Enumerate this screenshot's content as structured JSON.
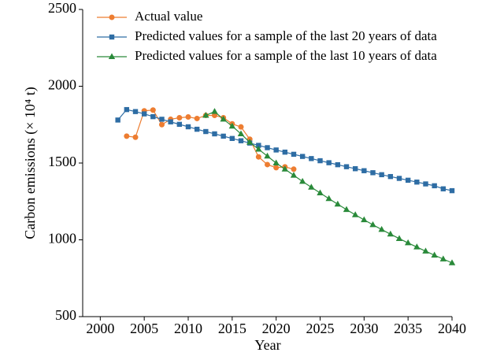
{
  "chart_data": {
    "type": "line",
    "x_label": "Year",
    "y_label": "Carbon emissions (× 10⁴ t)",
    "x": [
      2002,
      2003,
      2004,
      2005,
      2006,
      2007,
      2008,
      2009,
      2010,
      2011,
      2012,
      2013,
      2014,
      2015,
      2016,
      2017,
      2018,
      2019,
      2020,
      2021,
      2022,
      2023,
      2024,
      2025,
      2026,
      2027,
      2028,
      2029,
      2030,
      2031,
      2032,
      2033,
      2034,
      2035,
      2036,
      2037,
      2038,
      2039,
      2040
    ],
    "series": [
      {
        "name": "Actual value",
        "color": "#ed7d31",
        "marker": "circle",
        "values": [
          null,
          1675,
          1668,
          1840,
          1845,
          1750,
          1785,
          1795,
          1800,
          1790,
          1810,
          1810,
          1795,
          1755,
          1735,
          1655,
          1540,
          1490,
          1470,
          1475,
          1460,
          null,
          null,
          null,
          null,
          null,
          null,
          null,
          null,
          null,
          null,
          null,
          null,
          null,
          null,
          null,
          null,
          null,
          null
        ]
      },
      {
        "name": "Predicted values for a sample of the last 20 years of data",
        "color": "#2e6da4",
        "marker": "square",
        "values": [
          1780,
          1848,
          1835,
          1820,
          1802,
          1785,
          1768,
          1752,
          1736,
          1720,
          1705,
          1690,
          1675,
          1660,
          1645,
          1630,
          1615,
          1600,
          1585,
          1571,
          1557,
          1543,
          1529,
          1515,
          1502,
          1489,
          1476,
          1463,
          1450,
          1437,
          1424,
          1412,
          1400,
          1388,
          1376,
          1364,
          1352,
          1332,
          1320
        ]
      },
      {
        "name": "Predicted values for a sample of the last 10 years of data",
        "color": "#2a8a3a",
        "marker": "triangle",
        "values": [
          null,
          null,
          null,
          null,
          null,
          null,
          null,
          null,
          null,
          null,
          1810,
          1835,
          1785,
          1740,
          1690,
          1635,
          1590,
          1545,
          1500,
          1460,
          1420,
          1380,
          1342,
          1305,
          1268,
          1232,
          1197,
          1163,
          1130,
          1098,
          1067,
          1037,
          1008,
          980,
          953,
          926,
          900,
          875,
          850
        ]
      }
    ],
    "xlim": [
      1998,
      2040
    ],
    "xticks": [
      2000,
      2005,
      2010,
      2015,
      2020,
      2025,
      2030,
      2035,
      2040
    ],
    "ylim": [
      500,
      2500
    ],
    "yticks": [
      500,
      1000,
      1500,
      2000,
      2500
    ],
    "legend": "upper left"
  }
}
